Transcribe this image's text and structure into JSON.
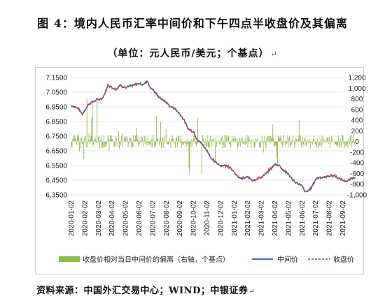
{
  "title": "图 4：境内人民币汇率中间价和下午四点半收盘价及其偏离",
  "subtitle": "（单位：元人民币/美元；个基点）",
  "source_note": "资料来源：中国外汇交易中心；WIND；中银证券",
  "colors": {
    "bar": "#8dba4e",
    "mid": "#4472c4",
    "close": "#c0392b",
    "grid": "#e0e0e0"
  },
  "chart_data": {
    "type": "line",
    "left_axis": {
      "min": 6.35,
      "max": 7.15,
      "ticks": [
        "7.1500",
        "7.0500",
        "6.9500",
        "6.8500",
        "6.7500",
        "6.6500",
        "6.5500",
        "6.4500",
        "6.3500"
      ]
    },
    "right_axis": {
      "min": -1000,
      "max": 1200,
      "ticks": [
        "1,200",
        "1,000",
        "800",
        "600",
        "400",
        "200",
        "0",
        "-200",
        "-400",
        "-600",
        "-800",
        "-1,000"
      ]
    },
    "x_ticks": [
      "2020-01-02",
      "2020-02-02",
      "2020-03-02",
      "2020-04-02",
      "2020-05-02",
      "2020-06-02",
      "2020-07-02",
      "2020-08-02",
      "2020-09-02",
      "2020-10-02",
      "2020-11-02",
      "2020-12-02",
      "2021-01-02",
      "2021-02-02",
      "2021-03-02",
      "2021-04-02",
      "2021-05-02",
      "2021-06-02",
      "2021-07-02",
      "2021-08-02",
      "2021-09-02"
    ],
    "mid_price_anchors": [
      {
        "t": 0.0,
        "v": 6.96
      },
      {
        "t": 0.5,
        "v": 6.94
      },
      {
        "t": 0.8,
        "v": 6.9
      },
      {
        "t": 1.0,
        "v": 6.93
      },
      {
        "t": 1.3,
        "v": 6.97
      },
      {
        "t": 1.7,
        "v": 6.99
      },
      {
        "t": 2.0,
        "v": 7.0
      },
      {
        "t": 2.3,
        "v": 7.01
      },
      {
        "t": 2.5,
        "v": 7.05
      },
      {
        "t": 2.7,
        "v": 7.1
      },
      {
        "t": 3.0,
        "v": 7.08
      },
      {
        "t": 3.3,
        "v": 7.07
      },
      {
        "t": 3.6,
        "v": 7.1
      },
      {
        "t": 4.0,
        "v": 7.08
      },
      {
        "t": 4.3,
        "v": 7.09
      },
      {
        "t": 4.7,
        "v": 7.1
      },
      {
        "t": 5.0,
        "v": 7.11
      },
      {
        "t": 5.3,
        "v": 7.1
      },
      {
        "t": 5.6,
        "v": 7.13
      },
      {
        "t": 5.8,
        "v": 7.08
      },
      {
        "t": 6.0,
        "v": 7.07
      },
      {
        "t": 6.3,
        "v": 7.03
      },
      {
        "t": 6.7,
        "v": 7.0
      },
      {
        "t": 7.0,
        "v": 6.98
      },
      {
        "t": 7.3,
        "v": 6.95
      },
      {
        "t": 7.6,
        "v": 6.94
      },
      {
        "t": 8.0,
        "v": 6.9
      },
      {
        "t": 8.3,
        "v": 6.86
      },
      {
        "t": 8.6,
        "v": 6.8
      },
      {
        "t": 9.0,
        "v": 6.78
      },
      {
        "t": 9.3,
        "v": 6.72
      },
      {
        "t": 9.6,
        "v": 6.7
      },
      {
        "t": 10.0,
        "v": 6.65
      },
      {
        "t": 10.3,
        "v": 6.6
      },
      {
        "t": 10.5,
        "v": 6.58
      },
      {
        "t": 10.8,
        "v": 6.56
      },
      {
        "t": 11.0,
        "v": 6.55
      },
      {
        "t": 11.4,
        "v": 6.55
      },
      {
        "t": 11.7,
        "v": 6.54
      },
      {
        "t": 12.0,
        "v": 6.5
      },
      {
        "t": 12.3,
        "v": 6.47
      },
      {
        "t": 12.6,
        "v": 6.46
      },
      {
        "t": 13.0,
        "v": 6.47
      },
      {
        "t": 13.4,
        "v": 6.45
      },
      {
        "t": 13.7,
        "v": 6.46
      },
      {
        "t": 14.0,
        "v": 6.47
      },
      {
        "t": 14.4,
        "v": 6.5
      },
      {
        "t": 14.7,
        "v": 6.53
      },
      {
        "t": 15.0,
        "v": 6.56
      },
      {
        "t": 15.3,
        "v": 6.55
      },
      {
        "t": 15.6,
        "v": 6.52
      },
      {
        "t": 16.0,
        "v": 6.49
      },
      {
        "t": 16.3,
        "v": 6.45
      },
      {
        "t": 16.6,
        "v": 6.43
      },
      {
        "t": 17.0,
        "v": 6.41
      },
      {
        "t": 17.2,
        "v": 6.37
      },
      {
        "t": 17.5,
        "v": 6.38
      },
      {
        "t": 17.8,
        "v": 6.42
      },
      {
        "t": 18.0,
        "v": 6.46
      },
      {
        "t": 18.3,
        "v": 6.47
      },
      {
        "t": 18.7,
        "v": 6.47
      },
      {
        "t": 19.0,
        "v": 6.48
      },
      {
        "t": 19.4,
        "v": 6.48
      },
      {
        "t": 19.7,
        "v": 6.46
      },
      {
        "t": 20.0,
        "v": 6.45
      },
      {
        "t": 20.3,
        "v": 6.44
      },
      {
        "t": 20.6,
        "v": 6.46
      },
      {
        "t": 20.9,
        "v": 6.47
      }
    ],
    "deviation_range_bp": [
      -750,
      1000
    ],
    "legend": [
      {
        "key": "bar",
        "label": "收盘价相对当日中间价的偏离（右轴，个基点）"
      },
      {
        "key": "mid",
        "label": "中间价"
      },
      {
        "key": "close",
        "label": "收盘价"
      }
    ]
  }
}
